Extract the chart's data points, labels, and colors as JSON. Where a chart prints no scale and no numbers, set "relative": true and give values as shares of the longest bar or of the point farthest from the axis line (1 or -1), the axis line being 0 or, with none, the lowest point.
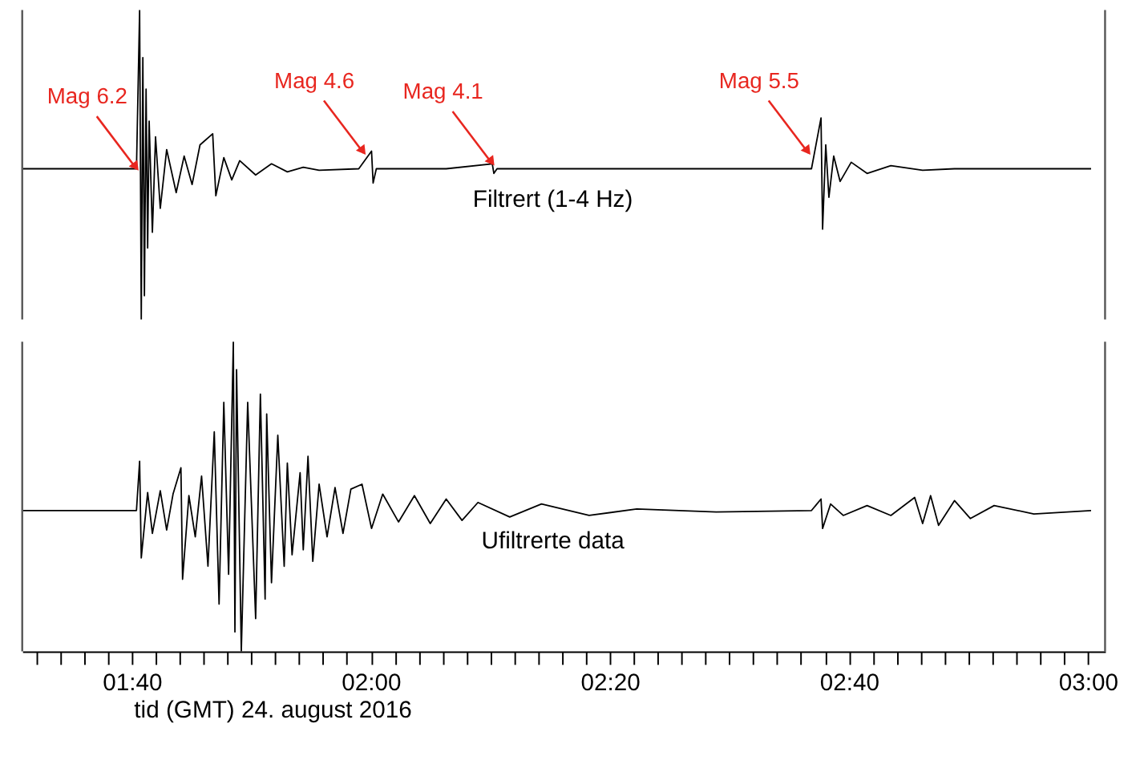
{
  "chart_data": [
    {
      "type": "line",
      "relative": true,
      "xlim": [
        1.514,
        3.024
      ],
      "series": [
        {
          "name": "Filtrert (1-4 Hz)",
          "color": "#000000",
          "x": [
            1.515,
            1.6733,
            1.6777,
            1.68,
            1.6822,
            1.6844,
            1.6867,
            1.6889,
            1.691,
            1.6955,
            1.6999,
            1.7065,
            1.7154,
            1.7287,
            1.7398,
            1.7509,
            1.7619,
            1.7796,
            1.784,
            1.7951,
            1.8062,
            1.8173,
            1.8395,
            1.8616,
            1.8837,
            1.9059,
            1.928,
            1.9833,
            2.0011,
            2.0033,
            2.0078,
            2.1052,
            2.1695,
            2.1717,
            2.1761,
            2.6146,
            2.6279,
            2.6301,
            2.6345,
            2.6389,
            2.6456,
            2.6545,
            2.67,
            2.6921,
            2.7253,
            2.7696,
            2.814,
            3.0045
          ],
          "values": [
            0.487,
            0.487,
            1,
            0,
            0.846,
            0.077,
            0.744,
            0.231,
            0.641,
            0.282,
            0.59,
            0.359,
            0.549,
            0.41,
            0.528,
            0.436,
            0.564,
            0.6,
            0.4,
            0.523,
            0.451,
            0.513,
            0.467,
            0.503,
            0.477,
            0.492,
            0.482,
            0.487,
            0.544,
            0.441,
            0.487,
            0.487,
            0.503,
            0.472,
            0.487,
            0.487,
            0.651,
            0.292,
            0.564,
            0.395,
            0.528,
            0.446,
            0.508,
            0.472,
            0.497,
            0.482,
            0.487,
            0.487
          ]
        }
      ],
      "annotations": [
        {
          "text": "Mag 6.2",
          "x": 1.6733,
          "y": 0.487
        },
        {
          "text": "Mag 4.6",
          "x": 1.99,
          "y": 0.538
        },
        {
          "text": "Mag 4.1",
          "x": 2.1695,
          "y": 0.503
        },
        {
          "text": "Mag 5.5",
          "x": 2.6102,
          "y": 0.538
        }
      ]
    },
    {
      "type": "line",
      "relative": true,
      "tick_labels": "x",
      "xlim": [
        1.514,
        3.024
      ],
      "xlabel": "tid (GMT) 24. august 2016",
      "xticks": [
        {
          "value": 1.5333,
          "label": null
        },
        {
          "value": 1.5667,
          "label": null
        },
        {
          "value": 1.6,
          "label": null
        },
        {
          "value": 1.6333,
          "label": null
        },
        {
          "value": 1.6667,
          "label": "01:40"
        },
        {
          "value": 1.7,
          "label": null
        },
        {
          "value": 1.7333,
          "label": null
        },
        {
          "value": 1.7667,
          "label": null
        },
        {
          "value": 1.8,
          "label": null
        },
        {
          "value": 1.8333,
          "label": null
        },
        {
          "value": 1.8667,
          "label": null
        },
        {
          "value": 1.9,
          "label": null
        },
        {
          "value": 1.9333,
          "label": null
        },
        {
          "value": 1.9667,
          "label": null
        },
        {
          "value": 2,
          "label": "02:00"
        },
        {
          "value": 2.0333,
          "label": null
        },
        {
          "value": 2.0667,
          "label": null
        },
        {
          "value": 2.1,
          "label": null
        },
        {
          "value": 2.1333,
          "label": null
        },
        {
          "value": 2.1667,
          "label": null
        },
        {
          "value": 2.2,
          "label": null
        },
        {
          "value": 2.2333,
          "label": null
        },
        {
          "value": 2.2667,
          "label": null
        },
        {
          "value": 2.3,
          "label": null
        },
        {
          "value": 2.3333,
          "label": "02:20"
        },
        {
          "value": 2.3667,
          "label": null
        },
        {
          "value": 2.4,
          "label": null
        },
        {
          "value": 2.4333,
          "label": null
        },
        {
          "value": 2.4667,
          "label": null
        },
        {
          "value": 2.5,
          "label": null
        },
        {
          "value": 2.5333,
          "label": null
        },
        {
          "value": 2.5667,
          "label": null
        },
        {
          "value": 2.6,
          "label": null
        },
        {
          "value": 2.6333,
          "label": null
        },
        {
          "value": 2.6667,
          "label": "02:40"
        },
        {
          "value": 2.7,
          "label": null
        },
        {
          "value": 2.7333,
          "label": null
        },
        {
          "value": 2.7667,
          "label": null
        },
        {
          "value": 2.8,
          "label": null
        },
        {
          "value": 2.8333,
          "label": null
        },
        {
          "value": 2.8667,
          "label": null
        },
        {
          "value": 2.9,
          "label": null
        },
        {
          "value": 2.9333,
          "label": null
        },
        {
          "value": 2.9667,
          "label": null
        },
        {
          "value": 3,
          "label": "03:00"
        }
      ],
      "series": [
        {
          "name": "Ufiltrerte data",
          "color": "#000000",
          "x": [
            1.515,
            1.6733,
            1.6777,
            1.68,
            1.6889,
            1.6955,
            1.7065,
            1.7154,
            1.7243,
            1.7353,
            1.7376,
            1.7464,
            1.7553,
            1.7641,
            1.773,
            1.7818,
            1.7885,
            1.7951,
            1.8018,
            1.8084,
            1.8106,
            1.8129,
            1.8195,
            1.8284,
            1.8395,
            1.8461,
            1.8527,
            1.8549,
            1.8616,
            1.8704,
            1.8793,
            1.8837,
            1.8903,
            1.9015,
            1.9059,
            1.9125,
            1.9192,
            1.928,
            1.9391,
            1.9502,
            1.9613,
            1.9723,
            1.9878,
            2.0011,
            2.0167,
            2.0388,
            2.0609,
            2.083,
            2.1052,
            2.1273,
            2.1495,
            2.1938,
            2.2381,
            2.3045,
            2.371,
            2.4817,
            2.6146,
            2.6279,
            2.6301,
            2.6412,
            2.6589,
            2.6921,
            2.7253,
            2.7585,
            2.7696,
            2.7807,
            2.7918,
            2.814,
            2.8362,
            2.8693,
            2.9247,
            3.0045
          ],
          "values": [
            0.455,
            0.455,
            0.614,
            0.302,
            0.513,
            0.381,
            0.519,
            0.392,
            0.508,
            0.593,
            0.233,
            0.503,
            0.37,
            0.566,
            0.275,
            0.709,
            0.153,
            0.804,
            0.249,
            1,
            0.063,
            0.91,
            0,
            0.804,
            0.106,
            0.831,
            0.169,
            0.767,
            0.222,
            0.698,
            0.275,
            0.608,
            0.312,
            0.577,
            0.328,
            0.63,
            0.291,
            0.54,
            0.37,
            0.529,
            0.381,
            0.524,
            0.54,
            0.397,
            0.508,
            0.418,
            0.503,
            0.413,
            0.492,
            0.423,
            0.481,
            0.434,
            0.476,
            0.439,
            0.46,
            0.45,
            0.455,
            0.492,
            0.397,
            0.476,
            0.439,
            0.471,
            0.439,
            0.497,
            0.413,
            0.503,
            0.407,
            0.487,
            0.429,
            0.471,
            0.444,
            0.455
          ]
        }
      ]
    }
  ]
}
